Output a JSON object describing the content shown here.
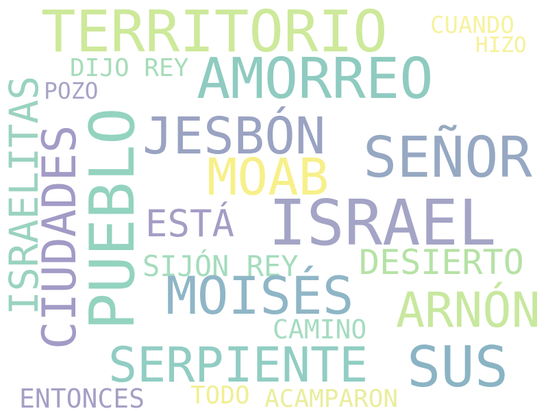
{
  "words": [
    {
      "text": "TERRITORIO",
      "color": "#cde99a"
    },
    {
      "text": "CUANDO",
      "color": "#f7f29e"
    },
    {
      "text": "HIZO",
      "color": "#f5f19a"
    },
    {
      "text": "AMORREO",
      "color": "#8fcbc0"
    },
    {
      "text": "DIJO REY",
      "color": "#a6dcb8"
    },
    {
      "text": "POZO",
      "color": "#a6a3c7"
    },
    {
      "text": "ISRAELITAS",
      "color": "#9ad3bf"
    },
    {
      "text": "CIUDADES",
      "color": "#a29bc6"
    },
    {
      "text": "PUEBLO",
      "color": "#93d3bf"
    },
    {
      "text": "JESBÓN",
      "color": "#9aa3c2"
    },
    {
      "text": "SEÑOR",
      "color": "#96a8c2"
    },
    {
      "text": "MOAB",
      "color": "#f7f08a"
    },
    {
      "text": "ISRAEL",
      "color": "#a4a4c6"
    },
    {
      "text": "ESTÁ",
      "color": "#a59dc5"
    },
    {
      "text": "SIJÓN REY",
      "color": "#a5dcbd"
    },
    {
      "text": "DESIERTO",
      "color": "#b5e2a5"
    },
    {
      "text": "MOISÉS",
      "color": "#8fb6c6"
    },
    {
      "text": "ARNÓN",
      "color": "#c8e89e"
    },
    {
      "text": "CAMINO",
      "color": "#a5dcc2"
    },
    {
      "text": "SERPIENTE",
      "color": "#91cdc3"
    },
    {
      "text": "SUS",
      "color": "#8ab4c4"
    },
    {
      "text": "ENTONCES",
      "color": "#a69fc5"
    },
    {
      "text": "TODO",
      "color": "#f2ee94"
    },
    {
      "text": "ACAMPARON",
      "color": "#eaed9c"
    }
  ]
}
